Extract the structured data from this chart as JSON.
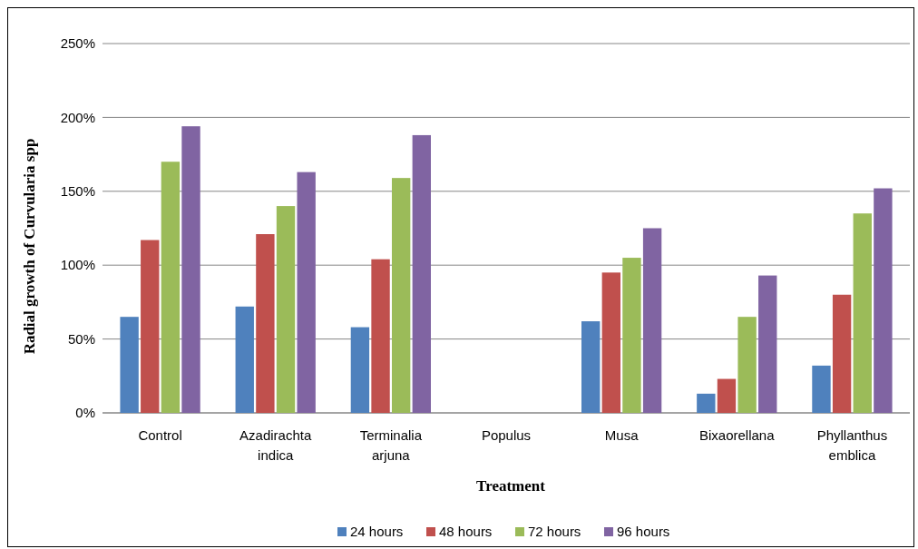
{
  "chart_data": {
    "type": "bar",
    "xlabel": "Treatment",
    "ylabel": "Radial growth of Curvularia spp",
    "categories": [
      "Control",
      "Azadirachta indica",
      "Terminalia arjuna",
      "Populus",
      "Musa",
      "Bixaorellana",
      "Phyllanthus emblica"
    ],
    "series": [
      {
        "name": "24 hours",
        "color": "#4f81bd",
        "values": [
          65,
          72,
          58,
          0,
          62,
          13,
          32
        ]
      },
      {
        "name": "48 hours",
        "color": "#c0504d",
        "values": [
          117,
          121,
          104,
          0,
          95,
          23,
          80
        ]
      },
      {
        "name": "72 hours",
        "color": "#9bbb59",
        "values": [
          170,
          140,
          159,
          0,
          105,
          65,
          135
        ]
      },
      {
        "name": "96 hours",
        "color": "#8064a2",
        "values": [
          194,
          163,
          188,
          0,
          125,
          93,
          152
        ]
      }
    ],
    "ylim": [
      0,
      250
    ],
    "yticks": [
      {
        "value": 0,
        "label": "0%"
      },
      {
        "value": 50,
        "label": "50%"
      },
      {
        "value": 100,
        "label": "100%"
      },
      {
        "value": 150,
        "label": "150%"
      },
      {
        "value": 200,
        "label": "200%"
      },
      {
        "value": 250,
        "label": "250%"
      }
    ],
    "grid": "y",
    "legend": "bottom"
  }
}
